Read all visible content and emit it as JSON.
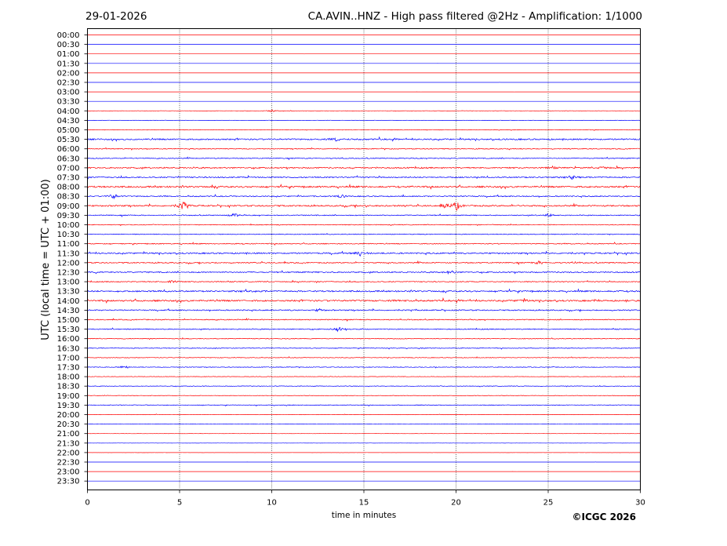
{
  "header": {
    "date": "29-01-2026",
    "title": "CA.AVIN..HNZ - High pass filtered @2Hz - Amplification: 1/1000"
  },
  "footer": {
    "copyright": "©ICGC 2026"
  },
  "colors": {
    "red": "#ff0000",
    "blue": "#0000ff",
    "grid": "#000000",
    "background": "#ffffff"
  },
  "chart_data": {
    "type": "line",
    "title": "CA.AVIN..HNZ - High pass filtered @2Hz - Amplification: 1/1000",
    "xlabel": "time in minutes",
    "ylabel": "UTC (local time = UTC + 01:00)",
    "xlim": [
      0,
      30
    ],
    "xticks": [
      "0",
      "5",
      "10",
      "15",
      "20",
      "25",
      "30"
    ],
    "grid_x": "vertical dotted lines at 5, 10, 15, 20, 25",
    "trace_colors": "alternating red / blue per row",
    "rows": [
      "00:00",
      "00:30",
      "01:00",
      "01:30",
      "02:00",
      "02:30",
      "03:00",
      "03:30",
      "04:00",
      "04:30",
      "05:00",
      "05:30",
      "06:00",
      "06:30",
      "07:00",
      "07:30",
      "08:00",
      "08:30",
      "09:00",
      "09:30",
      "10:00",
      "10:30",
      "11:00",
      "11:30",
      "12:00",
      "12:30",
      "13:00",
      "13:30",
      "14:00",
      "14:30",
      "15:00",
      "15:30",
      "16:00",
      "16:30",
      "17:00",
      "17:30",
      "18:00",
      "18:30",
      "19:00",
      "19:30",
      "20:00",
      "20:30",
      "21:00",
      "21:30",
      "22:00",
      "22:30",
      "23:00",
      "23:30"
    ],
    "noise_level": [
      0.05,
      0.05,
      0.05,
      0.05,
      0.05,
      0.05,
      0.05,
      0.05,
      0.25,
      0.2,
      0.35,
      0.9,
      0.55,
      0.55,
      0.8,
      0.8,
      1.0,
      0.7,
      0.9,
      0.6,
      0.5,
      0.5,
      0.6,
      0.9,
      0.7,
      0.75,
      0.6,
      0.9,
      1.0,
      0.7,
      0.6,
      0.6,
      0.5,
      0.45,
      0.4,
      0.4,
      0.3,
      0.4,
      0.35,
      0.45,
      0.25,
      0.2,
      0.15,
      0.1,
      0.08,
      0.05,
      0.05,
      0.05
    ],
    "events": [
      {
        "row": "04:00",
        "minute": 10.0,
        "amp": 1.6
      },
      {
        "row": "05:30",
        "minute": 13.5,
        "amp": 2.2
      },
      {
        "row": "07:00",
        "minute": 25.2,
        "amp": 1.6
      },
      {
        "row": "07:00",
        "minute": 28.0,
        "amp": 2.0
      },
      {
        "row": "07:30",
        "minute": 26.3,
        "amp": 2.2
      },
      {
        "row": "08:30",
        "minute": 1.4,
        "amp": 3.5
      },
      {
        "row": "08:30",
        "minute": 13.8,
        "amp": 2.0
      },
      {
        "row": "09:00",
        "minute": 5.2,
        "amp": 6.0
      },
      {
        "row": "09:00",
        "minute": 20.0,
        "amp": 6.0
      },
      {
        "row": "09:00",
        "minute": 19.4,
        "amp": 2.2
      },
      {
        "row": "09:30",
        "minute": 8.0,
        "amp": 2.5
      },
      {
        "row": "09:30",
        "minute": 25.0,
        "amp": 2.0
      },
      {
        "row": "11:30",
        "minute": 14.8,
        "amp": 3.0
      },
      {
        "row": "12:00",
        "minute": 24.5,
        "amp": 2.0
      },
      {
        "row": "12:30",
        "minute": 19.7,
        "amp": 2.6
      },
      {
        "row": "13:00",
        "minute": 4.6,
        "amp": 2.6
      },
      {
        "row": "14:00",
        "minute": 23.6,
        "amp": 2.0
      },
      {
        "row": "14:30",
        "minute": 12.6,
        "amp": 2.0
      },
      {
        "row": "15:30",
        "minute": 13.6,
        "amp": 3.0
      },
      {
        "row": "17:30",
        "minute": 2.0,
        "amp": 2.4
      }
    ]
  }
}
